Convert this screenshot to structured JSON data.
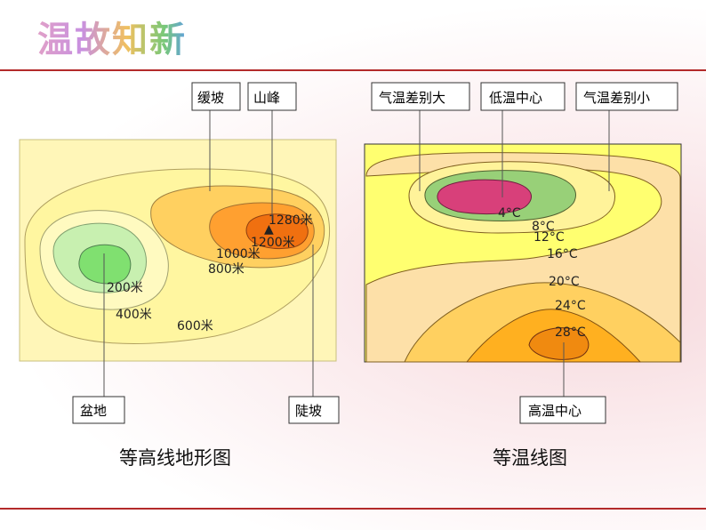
{
  "title": "温故知新",
  "contour_map": {
    "caption": "等高线地形图",
    "callouts": {
      "gentle_slope": "缓坡",
      "peak": "山峰",
      "basin": "盆地",
      "steep_slope": "陡坡"
    },
    "elevations": {
      "e1280": "1280米",
      "e1200": "1200米",
      "e1000": "1000米",
      "e800": "800米",
      "e200": "200米",
      "e400": "400米",
      "e600": "600米"
    },
    "peak_symbol": "▲"
  },
  "isotherm_map": {
    "caption": "等温线图",
    "callouts": {
      "large_diff": "气温差别大",
      "cold_center": "低温中心",
      "small_diff": "气温差别小",
      "warm_center": "高温中心"
    },
    "temperatures": {
      "t4": "4°C",
      "t8": "8°C",
      "t12": "12°C",
      "t16": "16°C",
      "t20": "20°C",
      "t24": "24°C",
      "t28": "28°C"
    }
  },
  "colors": {
    "accent_rule": "#b32a2a",
    "cold_core": "#d8407a",
    "warm_core": "#f08a10",
    "background_yellow": "#ffff99"
  }
}
